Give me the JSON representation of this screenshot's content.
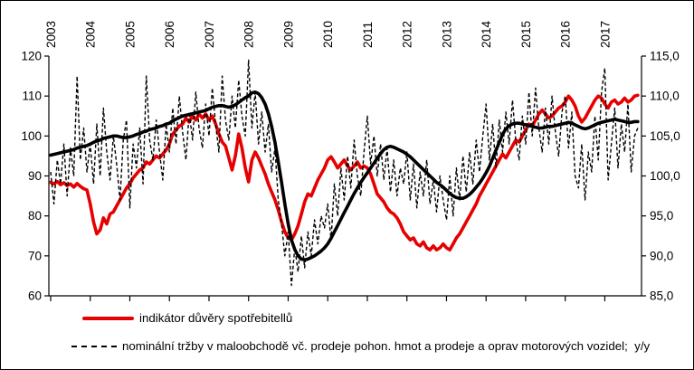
{
  "chart_data": {
    "type": "line",
    "title": "",
    "frequency": "monthly",
    "first_month": "2003-01",
    "x_axis": {
      "tick_labels": [
        "2003",
        "2004",
        "2005",
        "2006",
        "2007",
        "2008",
        "2009",
        "2010",
        "2011",
        "2012",
        "2013",
        "2014",
        "2015",
        "2016",
        "2017"
      ],
      "label_position": "top-rotated-90",
      "tick_position": "bottom"
    },
    "left_axis": {
      "min": 60,
      "max": 120,
      "step": 10,
      "tick_values": [
        60,
        70,
        80,
        90,
        100,
        110,
        120
      ],
      "tick_labels": [
        "60",
        "70",
        "80",
        "90",
        "100",
        "110",
        "120"
      ]
    },
    "right_axis": {
      "min": 85,
      "max": 115,
      "step": 5,
      "tick_values": [
        85,
        90,
        95,
        100,
        105,
        110,
        115
      ],
      "tick_labels": [
        "85,0",
        "90,0",
        "95,0",
        "100,0",
        "105,0",
        "110,0",
        "115,0"
      ]
    },
    "grid": "off",
    "legend_position": "bottom-left",
    "series": [
      {
        "name": "indikátor důvěry spotřebitellů",
        "axis": "left",
        "line": "solid-thick",
        "color": "#e60000",
        "values": [
          88.4,
          88.0,
          88.6,
          87.8,
          88.3,
          87.6,
          88.0,
          87.2,
          88.1,
          87.4,
          86.8,
          86.5,
          83.0,
          78.5,
          75.5,
          76.5,
          79.5,
          78.0,
          80.5,
          81.0,
          82.5,
          84.0,
          85.5,
          87.0,
          88.0,
          89.5,
          90.5,
          91.5,
          92.0,
          93.5,
          93.0,
          94.0,
          95.0,
          94.5,
          95.5,
          96.5,
          98.0,
          100.5,
          101.5,
          102.5,
          103.0,
          104.5,
          103.5,
          105.0,
          104.0,
          105.5,
          104.5,
          105.5,
          104.0,
          105.0,
          103.0,
          100.5,
          98.5,
          97.5,
          94.5,
          91.5,
          95.0,
          100.5,
          97.0,
          92.0,
          88.5,
          94.0,
          96.0,
          94.5,
          92.5,
          90.5,
          88.0,
          86.0,
          84.0,
          81.5,
          78.5,
          76.0,
          74.5,
          74.0,
          75.5,
          77.5,
          80.5,
          83.5,
          85.5,
          85.0,
          87.0,
          89.0,
          90.5,
          92.0,
          94.0,
          94.8,
          93.5,
          92.0,
          93.0,
          94.0,
          92.5,
          91.5,
          92.5,
          93.5,
          92.0,
          92.5,
          92.0,
          90.5,
          88.0,
          85.5,
          84.5,
          83.5,
          82.0,
          81.0,
          80.5,
          79.5,
          78.0,
          76.0,
          75.0,
          74.0,
          74.5,
          73.0,
          72.5,
          73.5,
          72.0,
          71.5,
          72.5,
          71.5,
          72.0,
          73.0,
          72.0,
          71.5,
          73.0,
          74.5,
          75.5,
          77.0,
          78.5,
          80.0,
          81.5,
          83.0,
          85.0,
          86.5,
          88.0,
          89.5,
          91.0,
          92.5,
          94.0,
          95.5,
          94.5,
          96.0,
          97.5,
          99.0,
          98.5,
          100.0,
          101.5,
          103.0,
          102.5,
          104.0,
          105.5,
          106.5,
          105.5,
          104.5,
          105.0,
          106.0,
          107.0,
          107.5,
          108.5,
          110.0,
          109.0,
          107.5,
          105.0,
          103.5,
          104.5,
          106.0,
          107.5,
          109.0,
          110.0,
          109.5,
          108.0,
          107.0,
          108.5,
          109.0,
          108.0,
          108.5,
          109.5,
          108.5,
          109.0,
          110.0,
          110.2
        ]
      },
      {
        "name": "nominální tržby v maloobchodě vč. prodeje pohon. hmot a prodeje a oprav motorových vozidel;  y/y",
        "axis": "right",
        "line": "dashed-thin",
        "color": "#000000",
        "values": [
          100.5,
          96.5,
          102.0,
          99.0,
          104.0,
          97.5,
          103.5,
          100.0,
          112.5,
          102.0,
          106.0,
          100.5,
          104.0,
          99.0,
          106.5,
          100.0,
          108.5,
          103.0,
          99.5,
          105.0,
          101.5,
          97.0,
          104.5,
          107.0,
          96.0,
          104.0,
          101.0,
          106.0,
          99.0,
          112.5,
          104.5,
          102.0,
          107.0,
          103.0,
          99.5,
          106.5,
          103.0,
          108.5,
          104.0,
          110.0,
          105.5,
          102.0,
          108.0,
          104.5,
          110.5,
          106.0,
          103.5,
          109.0,
          105.0,
          111.0,
          106.5,
          103.0,
          112.5,
          107.0,
          104.5,
          110.0,
          106.0,
          112.0,
          107.5,
          105.0,
          114.5,
          106.0,
          110.5,
          104.0,
          108.0,
          103.0,
          106.5,
          100.5,
          103.5,
          97.0,
          94.0,
          90.0,
          93.0,
          86.3,
          91.0,
          88.0,
          92.5,
          88.5,
          93.0,
          90.0,
          94.5,
          91.5,
          95.0,
          93.5,
          96.5,
          92.0,
          99.0,
          95.0,
          101.0,
          97.0,
          102.5,
          98.5,
          104.5,
          100.0,
          97.5,
          103.0,
          107.5,
          101.5,
          105.0,
          100.0,
          104.0,
          99.5,
          103.5,
          98.0,
          102.0,
          97.5,
          101.0,
          99.0,
          103.0,
          97.0,
          101.5,
          96.0,
          100.5,
          97.5,
          102.0,
          96.5,
          99.5,
          95.5,
          100.0,
          97.0,
          94.5,
          100.0,
          95.0,
          101.0,
          97.0,
          102.5,
          98.0,
          103.0,
          99.0,
          104.5,
          100.5,
          105.0,
          109.0,
          102.0,
          106.5,
          101.0,
          107.0,
          103.0,
          108.0,
          104.0,
          109.5,
          104.5,
          102.0,
          107.5,
          104.0,
          110.5,
          105.0,
          111.0,
          106.0,
          103.0,
          108.5,
          104.0,
          110.0,
          105.5,
          102.5,
          108.0,
          110.0,
          103.5,
          108.0,
          100.0,
          98.5,
          104.0,
          97.0,
          103.0,
          100.5,
          107.5,
          102.0,
          110.5,
          113.5,
          99.5,
          104.0,
          108.5,
          101.0,
          106.5,
          103.0,
          109.0,
          100.5,
          105.0,
          106.0
        ]
      },
      {
        "name": "unlabeled-thick-black-trend-line",
        "axis": "right",
        "line": "solid-thick",
        "color": "#000000",
        "values": [
          102.6,
          102.7,
          102.8,
          102.9,
          103.0,
          103.1,
          103.2,
          103.3,
          103.5,
          103.6,
          103.7,
          103.8,
          104.0,
          104.2,
          104.4,
          104.5,
          104.7,
          104.8,
          104.9,
          105.0,
          105.0,
          104.9,
          104.8,
          104.8,
          104.9,
          105.0,
          105.2,
          105.3,
          105.5,
          105.6,
          105.8,
          105.9,
          106.0,
          106.2,
          106.3,
          106.5,
          106.6,
          106.9,
          107.1,
          107.3,
          107.5,
          107.6,
          107.7,
          107.8,
          107.9,
          108.0,
          108.1,
          108.2,
          108.4,
          108.6,
          108.7,
          108.8,
          108.8,
          108.7,
          108.6,
          108.7,
          108.9,
          109.2,
          109.5,
          109.8,
          110.0,
          110.4,
          110.5,
          110.3,
          109.8,
          109.0,
          107.8,
          106.2,
          104.2,
          101.8,
          99.2,
          96.5,
          94.0,
          92.0,
          90.8,
          90.0,
          89.6,
          89.5,
          89.6,
          89.8,
          90.0,
          90.3,
          90.6,
          91.0,
          91.5,
          92.2,
          93.0,
          93.8,
          94.6,
          95.4,
          96.2,
          97.0,
          97.8,
          98.5,
          99.2,
          99.8,
          100.4,
          101.0,
          101.6,
          102.2,
          102.8,
          103.3,
          103.6,
          103.7,
          103.6,
          103.4,
          103.2,
          103.0,
          102.7,
          102.4,
          102.0,
          101.6,
          101.2,
          100.8,
          100.4,
          100.0,
          99.6,
          99.2,
          98.9,
          98.6,
          98.2,
          97.8,
          97.5,
          97.3,
          97.2,
          97.2,
          97.4,
          97.7,
          98.1,
          98.6,
          99.1,
          99.7,
          100.4,
          101.2,
          102.2,
          103.2,
          104.2,
          105.2,
          105.9,
          106.3,
          106.5,
          106.6,
          106.6,
          106.5,
          106.4,
          106.3,
          106.2,
          106.1,
          106.0,
          106.0,
          106.1,
          106.2,
          106.2,
          106.3,
          106.4,
          106.5,
          106.6,
          106.7,
          106.6,
          106.4,
          106.2,
          106.0,
          105.9,
          106.0,
          106.2,
          106.4,
          106.6,
          106.7,
          106.8,
          106.9,
          107.0,
          107.1,
          107.0,
          106.9,
          106.8,
          106.7,
          106.7,
          106.8,
          106.8
        ]
      }
    ]
  },
  "colors": {
    "series_red": "#e60000",
    "series_black": "#000000",
    "axis": "#000000",
    "background": "#ffffff"
  }
}
